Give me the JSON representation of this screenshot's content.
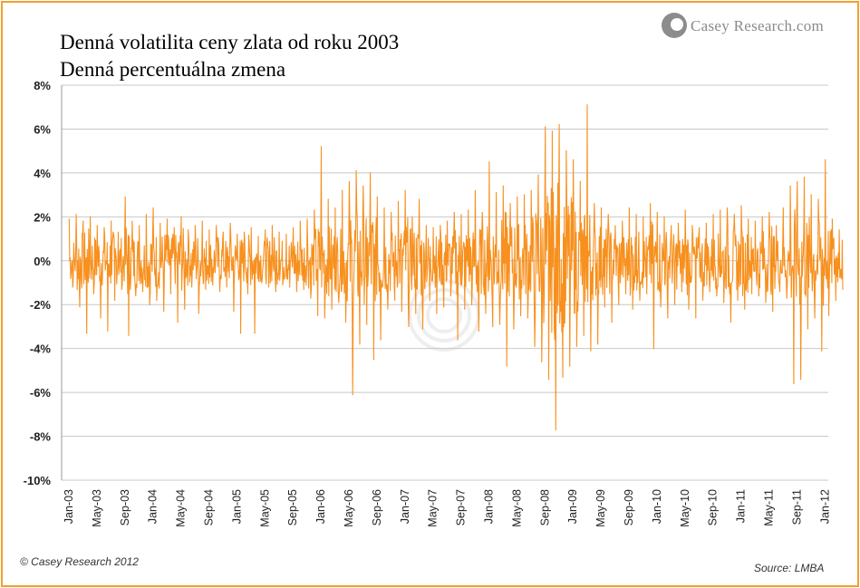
{
  "title": "Denná volatilita ceny zlata od roku 2003",
  "subtitle": "Denná percentuálna zmena",
  "logo_text": "Casey Research.com",
  "footer_left": "© Casey Research 2012",
  "footer_right": "Source: LMBA",
  "colors": {
    "series": "#f7901e",
    "frame": "#f0a030",
    "grid": "#c8c8c8"
  },
  "chart_data": {
    "type": "line",
    "title": "Denná volatilita ceny zlata od roku 2003",
    "subtitle": "Denná percentuálna zmena",
    "xlabel": "",
    "ylabel": "",
    "ylim": [
      -10,
      8
    ],
    "y_ticks": [
      "8%",
      "6%",
      "4%",
      "2%",
      "0%",
      "-2%",
      "-4%",
      "-6%",
      "-8%",
      "-10%"
    ],
    "x_ticks": [
      "Jan-03",
      "May-03",
      "Sep-03",
      "Jan-04",
      "May-04",
      "Sep-04",
      "Jan-05",
      "May-05",
      "Sep-05",
      "Jan-06",
      "May-06",
      "Sep-06",
      "Jan-07",
      "May-07",
      "Sep-07",
      "Jan-08",
      "May-08",
      "Sep-08",
      "Jan-09",
      "May-09",
      "Sep-09",
      "Jan-10",
      "May-10",
      "Sep-10",
      "Jan-11",
      "May-11",
      "Sep-11",
      "Jan-12"
    ],
    "grid": true,
    "legend": "none",
    "series": [
      {
        "values_note": "approximate daily % change, sampled",
        "points": [
          [
            "Jan-03",
            1.9
          ],
          [
            "Jan-03",
            -1.2
          ],
          [
            "Feb-03",
            2.1
          ],
          [
            "Feb-03",
            -2.1
          ],
          [
            "Mar-03",
            1.8
          ],
          [
            "Mar-03",
            -3.3
          ],
          [
            "Apr-03",
            2.0
          ],
          [
            "Apr-03",
            -1.5
          ],
          [
            "May-03",
            1.6
          ],
          [
            "May-03",
            -2.6
          ],
          [
            "Jun-03",
            1.5
          ],
          [
            "Jun-03",
            -3.2
          ],
          [
            "Jul-03",
            1.8
          ],
          [
            "Jul-03",
            -1.8
          ],
          [
            "Aug-03",
            1.3
          ],
          [
            "Aug-03",
            -1.3
          ],
          [
            "Sep-03",
            2.9
          ],
          [
            "Sep-03",
            -3.4
          ],
          [
            "Oct-03",
            1.8
          ],
          [
            "Oct-03",
            -1.6
          ],
          [
            "Nov-03",
            1.6
          ],
          [
            "Nov-03",
            -1.4
          ],
          [
            "Dec-03",
            2.1
          ],
          [
            "Dec-03",
            -2.0
          ],
          [
            "Jan-04",
            2.4
          ],
          [
            "Jan-04",
            -1.8
          ],
          [
            "Feb-04",
            1.7
          ],
          [
            "Feb-04",
            -2.3
          ],
          [
            "Mar-04",
            1.9
          ],
          [
            "Mar-04",
            -1.5
          ],
          [
            "Apr-04",
            1.5
          ],
          [
            "Apr-04",
            -2.8
          ],
          [
            "May-04",
            2.0
          ],
          [
            "May-04",
            -2.2
          ],
          [
            "Jun-04",
            1.4
          ],
          [
            "Jun-04",
            -1.2
          ],
          [
            "Jul-04",
            1.6
          ],
          [
            "Jul-04",
            -2.4
          ],
          [
            "Aug-04",
            1.8
          ],
          [
            "Aug-04",
            -1.3
          ],
          [
            "Sep-04",
            1.4
          ],
          [
            "Sep-04",
            -1.1
          ],
          [
            "Oct-04",
            1.6
          ],
          [
            "Oct-04",
            -1.4
          ],
          [
            "Nov-04",
            1.3
          ],
          [
            "Nov-04",
            -1.2
          ],
          [
            "Dec-04",
            1.7
          ],
          [
            "Dec-04",
            -2.3
          ],
          [
            "Jan-05",
            1.2
          ],
          [
            "Jan-05",
            -3.3
          ],
          [
            "Feb-05",
            1.3
          ],
          [
            "Feb-05",
            -1.5
          ],
          [
            "Mar-05",
            1.5
          ],
          [
            "Mar-05",
            -3.3
          ],
          [
            "Apr-05",
            1.1
          ],
          [
            "Apr-05",
            -1.0
          ],
          [
            "May-05",
            1.4
          ],
          [
            "May-05",
            -1.2
          ],
          [
            "Jun-05",
            1.6
          ],
          [
            "Jun-05",
            -1.4
          ],
          [
            "Jul-05",
            1.3
          ],
          [
            "Jul-05",
            -1.1
          ],
          [
            "Aug-05",
            1.2
          ],
          [
            "Aug-05",
            -1.2
          ],
          [
            "Sep-05",
            1.5
          ],
          [
            "Sep-05",
            -1.4
          ],
          [
            "Oct-05",
            1.8
          ],
          [
            "Oct-05",
            -1.3
          ],
          [
            "Nov-05",
            1.9
          ],
          [
            "Nov-05",
            -1.7
          ],
          [
            "Dec-05",
            2.3
          ],
          [
            "Dec-05",
            -2.5
          ],
          [
            "Jan-06",
            5.2
          ],
          [
            "Jan-06",
            -2.6
          ],
          [
            "Feb-06",
            2.8
          ],
          [
            "Feb-06",
            -2.2
          ],
          [
            "Mar-06",
            2.4
          ],
          [
            "Mar-06",
            -1.9
          ],
          [
            "Apr-06",
            3.2
          ],
          [
            "Apr-06",
            -2.8
          ],
          [
            "May-06",
            3.6
          ],
          [
            "May-06",
            -6.1
          ],
          [
            "Jun-06",
            4.1
          ],
          [
            "Jun-06",
            -3.8
          ],
          [
            "Jul-06",
            3.4
          ],
          [
            "Jul-06",
            -2.9
          ],
          [
            "Aug-06",
            4.0
          ],
          [
            "Aug-06",
            -4.5
          ],
          [
            "Sep-06",
            2.9
          ],
          [
            "Sep-06",
            -3.6
          ],
          [
            "Oct-06",
            2.4
          ],
          [
            "Oct-06",
            -2.2
          ],
          [
            "Nov-06",
            2.2
          ],
          [
            "Nov-06",
            -1.8
          ],
          [
            "Dec-06",
            2.7
          ],
          [
            "Dec-06",
            -2.3
          ],
          [
            "Jan-07",
            3.2
          ],
          [
            "Jan-07",
            -3.0
          ],
          [
            "Feb-07",
            2.0
          ],
          [
            "Feb-07",
            -2.4
          ],
          [
            "Mar-07",
            2.8
          ],
          [
            "Mar-07",
            -3.1
          ],
          [
            "Apr-07",
            1.6
          ],
          [
            "Apr-07",
            -1.8
          ],
          [
            "May-07",
            1.5
          ],
          [
            "May-07",
            -2.4
          ],
          [
            "Jun-07",
            1.6
          ],
          [
            "Jun-07",
            -2.1
          ],
          [
            "Jul-07",
            1.8
          ],
          [
            "Jul-07",
            -1.6
          ],
          [
            "Aug-07",
            2.2
          ],
          [
            "Aug-07",
            -3.6
          ],
          [
            "Sep-07",
            2.1
          ],
          [
            "Sep-07",
            -2.2
          ],
          [
            "Oct-07",
            2.3
          ],
          [
            "Oct-07",
            -2.0
          ],
          [
            "Nov-07",
            3.2
          ],
          [
            "Nov-07",
            -3.2
          ],
          [
            "Dec-07",
            2.2
          ],
          [
            "Dec-07",
            -2.4
          ],
          [
            "Jan-08",
            4.5
          ],
          [
            "Jan-08",
            -3.0
          ],
          [
            "Feb-08",
            3.1
          ],
          [
            "Feb-08",
            -2.9
          ],
          [
            "Mar-08",
            3.4
          ],
          [
            "Mar-08",
            -4.8
          ],
          [
            "Apr-08",
            2.6
          ],
          [
            "Apr-08",
            -3.1
          ],
          [
            "May-08",
            2.9
          ],
          [
            "May-08",
            -2.5
          ],
          [
            "Jun-08",
            3.0
          ],
          [
            "Jun-08",
            -2.6
          ],
          [
            "Jul-08",
            3.2
          ],
          [
            "Jul-08",
            -3.9
          ],
          [
            "Aug-08",
            3.9
          ],
          [
            "Aug-08",
            -4.6
          ],
          [
            "Sep-08",
            6.1
          ],
          [
            "Sep-08",
            -5.4
          ],
          [
            "Oct-08",
            5.9
          ],
          [
            "Oct-08",
            -7.7
          ],
          [
            "Nov-08",
            6.2
          ],
          [
            "Nov-08",
            -5.3
          ],
          [
            "Dec-08",
            5.0
          ],
          [
            "Dec-08",
            -4.8
          ],
          [
            "Jan-09",
            4.6
          ],
          [
            "Jan-09",
            -3.9
          ],
          [
            "Feb-09",
            3.6
          ],
          [
            "Feb-09",
            -3.4
          ],
          [
            "Mar-09",
            7.1
          ],
          [
            "Mar-09",
            -4.1
          ],
          [
            "Apr-09",
            2.6
          ],
          [
            "Apr-09",
            -3.8
          ],
          [
            "May-09",
            2.4
          ],
          [
            "May-09",
            -2.1
          ],
          [
            "Jun-09",
            2.1
          ],
          [
            "Jun-09",
            -2.8
          ],
          [
            "Jul-09",
            1.6
          ],
          [
            "Jul-09",
            -2.0
          ],
          [
            "Aug-09",
            1.8
          ],
          [
            "Aug-09",
            -1.5
          ],
          [
            "Sep-09",
            2.4
          ],
          [
            "Sep-09",
            -2.2
          ],
          [
            "Oct-09",
            2.1
          ],
          [
            "Oct-09",
            -1.8
          ],
          [
            "Nov-09",
            2.0
          ],
          [
            "Nov-09",
            -1.5
          ],
          [
            "Dec-09",
            2.6
          ],
          [
            "Dec-09",
            -4.0
          ],
          [
            "Jan-10",
            2.2
          ],
          [
            "Jan-10",
            -2.1
          ],
          [
            "Feb-10",
            2.0
          ],
          [
            "Feb-10",
            -2.6
          ],
          [
            "Mar-10",
            1.6
          ],
          [
            "Mar-10",
            -2.0
          ],
          [
            "Apr-10",
            1.7
          ],
          [
            "Apr-10",
            -1.4
          ],
          [
            "May-10",
            2.3
          ],
          [
            "May-10",
            -2.2
          ],
          [
            "Jun-10",
            1.6
          ],
          [
            "Jun-10",
            -2.6
          ],
          [
            "Jul-10",
            1.5
          ],
          [
            "Jul-10",
            -1.8
          ],
          [
            "Aug-10",
            1.7
          ],
          [
            "Aug-10",
            -1.4
          ],
          [
            "Sep-10",
            2.1
          ],
          [
            "Sep-10",
            -1.6
          ],
          [
            "Oct-10",
            2.3
          ],
          [
            "Oct-10",
            -1.9
          ],
          [
            "Nov-10",
            2.4
          ],
          [
            "Nov-10",
            -2.8
          ],
          [
            "Dec-10",
            2.1
          ],
          [
            "Dec-10",
            -1.8
          ],
          [
            "Jan-11",
            2.5
          ],
          [
            "Jan-11",
            -2.2
          ],
          [
            "Feb-11",
            1.9
          ],
          [
            "Feb-11",
            -1.5
          ],
          [
            "Mar-11",
            1.8
          ],
          [
            "Mar-11",
            -1.6
          ],
          [
            "Apr-11",
            2.0
          ],
          [
            "Apr-11",
            -1.9
          ],
          [
            "May-11",
            2.2
          ],
          [
            "May-11",
            -2.3
          ],
          [
            "Jun-11",
            1.6
          ],
          [
            "Jun-11",
            -1.4
          ],
          [
            "Jul-11",
            2.4
          ],
          [
            "Jul-11",
            -1.7
          ],
          [
            "Aug-11",
            3.4
          ],
          [
            "Aug-11",
            -5.6
          ],
          [
            "Sep-11",
            3.6
          ],
          [
            "Sep-11",
            -5.4
          ],
          [
            "Oct-11",
            3.8
          ],
          [
            "Oct-11",
            -3.1
          ],
          [
            "Nov-11",
            3.0
          ],
          [
            "Nov-11",
            -2.6
          ],
          [
            "Dec-11",
            2.8
          ],
          [
            "Dec-11",
            -4.1
          ],
          [
            "Jan-12",
            4.6
          ],
          [
            "Jan-12",
            -2.5
          ],
          [
            "Feb-12",
            1.9
          ],
          [
            "Feb-12",
            -1.8
          ],
          [
            "Mar-12",
            1.4
          ],
          [
            "Mar-12",
            -1.3
          ]
        ]
      }
    ]
  }
}
